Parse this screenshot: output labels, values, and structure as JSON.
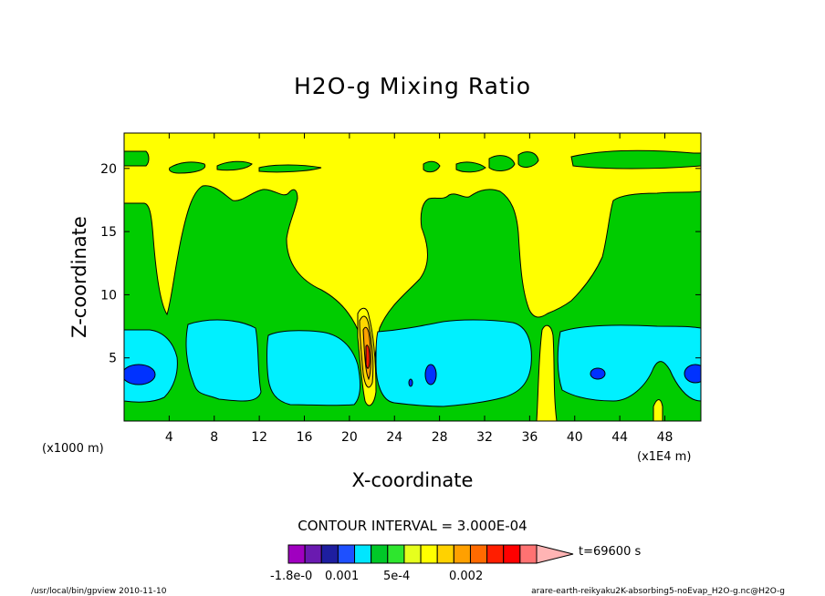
{
  "chart_data": {
    "type": "heatmap",
    "title": "H2O-g Mixing Ratio",
    "xlabel": "X-coordinate",
    "ylabel": "Z-coordinate",
    "x_unit_label": "(x1E4 m)",
    "y_unit_label": "(x1000 m)",
    "x_ticks": [
      "4",
      "8",
      "12",
      "16",
      "20",
      "24",
      "28",
      "32",
      "36",
      "40",
      "44",
      "48"
    ],
    "x_tick_values": [
      4,
      8,
      12,
      16,
      20,
      24,
      28,
      32,
      36,
      40,
      44,
      48
    ],
    "y_ticks": [
      "5",
      "10",
      "15",
      "20"
    ],
    "y_tick_values": [
      5,
      10,
      15,
      20
    ],
    "xlim": [
      0,
      51.2
    ],
    "ylim": [
      0,
      22.8
    ],
    "contour_interval_text": "CONTOUR INTERVAL = 3.000E-04",
    "time_label": "t=69600 s",
    "colorbar_labels": [
      "-1.8e-0",
      "0.001",
      "5e-4",
      "0.002"
    ],
    "colorbar_colors": [
      "#a000c0",
      "#6a1ab0",
      "#1e1ea0",
      "#1e50ff",
      "#00e6ff",
      "#00c828",
      "#2ee62e",
      "#e6ff1e",
      "#ffff00",
      "#ffd200",
      "#ffa000",
      "#ff6a00",
      "#ff1e00",
      "#ff0000",
      "#ff7272",
      "#ffb4b4"
    ],
    "level_colors": {
      "background_yellow": "#ffff00",
      "green": "#00cc00",
      "cyan": "#00f0ff",
      "blue": "#0032ff",
      "orange": "#ffa000",
      "red": "#ff2000",
      "gold": "#ffd700"
    }
  },
  "footer": {
    "left": "/usr/local/bin/gpview  2010-11-10",
    "right": "arare-earth-reikyaku2K-absorbing5-noEvap_H2O-g.nc@H2O-g"
  }
}
